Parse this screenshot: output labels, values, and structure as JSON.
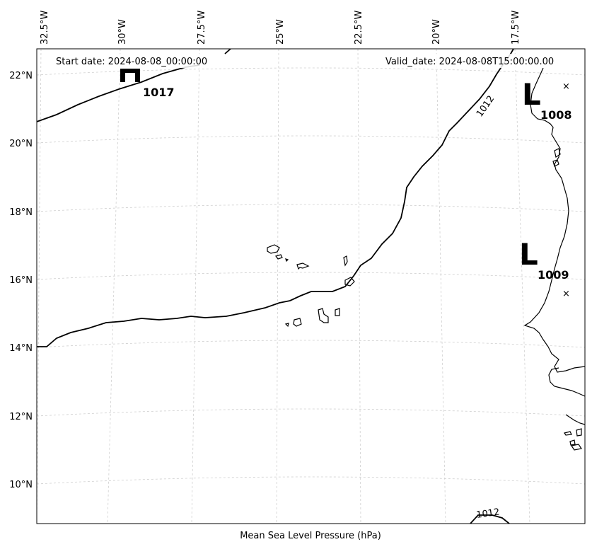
{
  "header": {
    "start_date": "Start date: 2024-08-08_00:00:00",
    "valid_date": "Valid_date: 2024-08-08T15:00:00.00"
  },
  "footer": {
    "xlabel": "Mean Sea Level Pressure (hPa)"
  },
  "axes": {
    "lon_ticks": [
      "32.5°W",
      "30°W",
      "27.5°W",
      "25°W",
      "22.5°W",
      "20°W",
      "17.5°W"
    ],
    "lat_ticks": [
      "22°N",
      "20°N",
      "18°N",
      "16°N",
      "14°N",
      "12°N",
      "10°N"
    ]
  },
  "pressure_centers": [
    {
      "type": "H",
      "value": "1017"
    },
    {
      "type": "L",
      "value": "1008"
    },
    {
      "type": "L",
      "value": "1009"
    }
  ],
  "contours": [
    {
      "level": "1012",
      "label": "1012"
    },
    {
      "level": "1012",
      "label": "1012"
    }
  ],
  "markers": [
    "×",
    "×"
  ]
}
